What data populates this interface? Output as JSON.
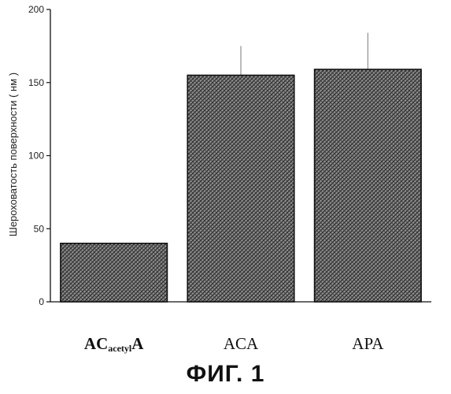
{
  "chart_data": {
    "type": "bar",
    "categories": [
      "ACacetylA",
      "ACA",
      "APA"
    ],
    "category_labels": [
      {
        "main": "AC",
        "sub": "acetyl",
        "tail": "A"
      },
      {
        "main": "ACA",
        "sub": "",
        "tail": ""
      },
      {
        "main": "APA",
        "sub": "",
        "tail": ""
      }
    ],
    "values": [
      40,
      155,
      159
    ],
    "error_upper": [
      40,
      175,
      184
    ],
    "ylabel": "Шероховатость поверхности ( нм )",
    "xlabel": "",
    "ylim": [
      0,
      200
    ],
    "yticks": [
      0,
      50,
      100,
      150,
      200
    ],
    "ytick_labels": [
      "0",
      "50",
      "100",
      "150",
      "200"
    ],
    "grid": false,
    "bar_fill": "crosshatch",
    "colors": {
      "bar_hatch": "#333333",
      "bar_bg": "#9a9a9a",
      "axis": "#111111"
    }
  },
  "figure_caption": "ФИГ. 1"
}
